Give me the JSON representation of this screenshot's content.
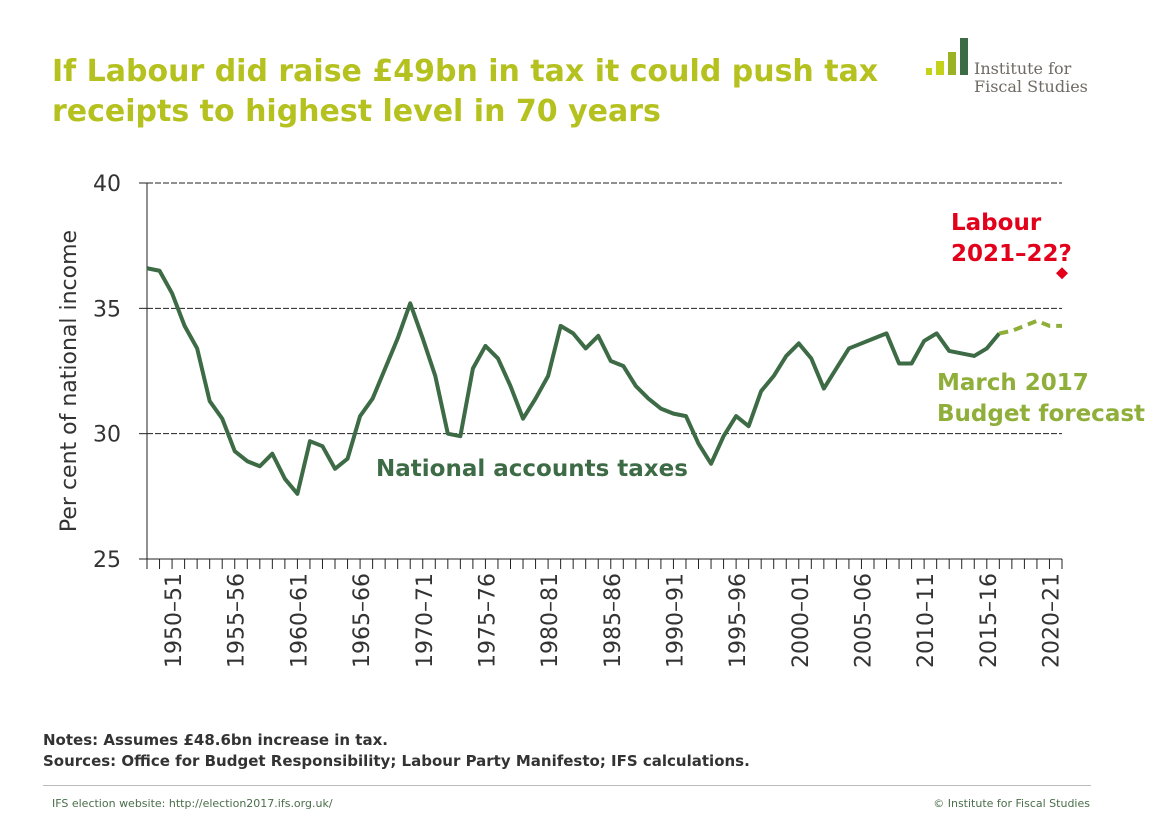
{
  "title": "If Labour did raise £49bn in tax it could push tax receipts to highest level in 70 years",
  "logo": {
    "line1": "Institute for",
    "line2": "Fiscal Studies"
  },
  "notes": {
    "line1": "Notes: Assumes £48.6bn increase in tax.",
    "line2": "Sources: Office for Budget Responsibility; Labour Party Manifesto; IFS calculations."
  },
  "footer": {
    "left": "IFS election website: http://election2017.ifs.org.uk/",
    "right": "© Institute for Fiscal Studies"
  },
  "colors": {
    "title": "#b5c11e",
    "actual": "#3d6b45",
    "forecast": "#8fae3a",
    "labour": "#e2001a"
  },
  "chart_data": {
    "type": "line",
    "ylabel": "Per cent of national income",
    "ylim": [
      25,
      40
    ],
    "yticks": [
      25,
      30,
      35,
      40
    ],
    "grid": "horizontal dashed at 30, 35, 40",
    "x_tick_labels": [
      "1950–51",
      "1955–56",
      "1960–61",
      "1965–66",
      "1970–71",
      "1975–76",
      "1980–81",
      "1985–86",
      "1990–91",
      "1995–96",
      "2000–01",
      "2005–06",
      "2010–11",
      "2015–16",
      "2020–21"
    ],
    "series": [
      {
        "name": "National accounts taxes",
        "style": "solid",
        "x": [
          "1948–49",
          "1949–50",
          "1950–51",
          "1951–52",
          "1952–53",
          "1953–54",
          "1954–55",
          "1955–56",
          "1956–57",
          "1957–58",
          "1958–59",
          "1959–60",
          "1960–61",
          "1961–62",
          "1962–63",
          "1963–64",
          "1964–65",
          "1965–66",
          "1966–67",
          "1967–68",
          "1968–69",
          "1969–70",
          "1970–71",
          "1971–72",
          "1972–73",
          "1973–74",
          "1974–75",
          "1975–76",
          "1976–77",
          "1977–78",
          "1978–79",
          "1979–80",
          "1980–81",
          "1981–82",
          "1982–83",
          "1983–84",
          "1984–85",
          "1985–86",
          "1986–87",
          "1987–88",
          "1988–89",
          "1989–90",
          "1990–91",
          "1991–92",
          "1992–93",
          "1993–94",
          "1994–95",
          "1995–96",
          "1996–97",
          "1997–98",
          "1998–99",
          "1999–00",
          "2000–01",
          "2001–02",
          "2002–03",
          "2003–04",
          "2004–05",
          "2005–06",
          "2006–07",
          "2007–08",
          "2008–09",
          "2009–10",
          "2010–11",
          "2011–12",
          "2012–13",
          "2013–14",
          "2014–15",
          "2015–16",
          "2016–17"
        ],
        "values": [
          36.6,
          36.5,
          35.6,
          34.3,
          33.4,
          31.3,
          30.6,
          29.3,
          28.9,
          28.7,
          29.2,
          28.2,
          27.6,
          29.7,
          29.5,
          28.6,
          29.0,
          30.7,
          31.4,
          32.6,
          33.8,
          35.2,
          33.8,
          32.3,
          30.0,
          29.9,
          32.6,
          33.5,
          33.0,
          31.9,
          30.6,
          31.4,
          32.3,
          34.3,
          34.0,
          33.4,
          33.9,
          32.9,
          32.7,
          31.9,
          31.4,
          31.0,
          30.8,
          30.7,
          29.6,
          28.8,
          29.9,
          30.7,
          30.3,
          31.7,
          32.3,
          33.1,
          33.6,
          33.0,
          31.8,
          32.6,
          33.4,
          33.6,
          33.8,
          34.0,
          32.8,
          32.8,
          33.7,
          34.0,
          33.3,
          33.2,
          33.1,
          33.4,
          34.0
        ]
      },
      {
        "name": "March 2017 Budget forecast",
        "style": "dashed",
        "x": [
          "2016–17",
          "2017–18",
          "2018–19",
          "2019–20",
          "2020–21",
          "2021–22"
        ],
        "values": [
          34.0,
          34.1,
          34.3,
          34.5,
          34.3,
          34.3
        ]
      },
      {
        "name": "Labour 2021–22?",
        "style": "marker",
        "x": [
          "2021–22"
        ],
        "values": [
          36.4
        ]
      }
    ],
    "annotations": [
      {
        "text": "National accounts taxes",
        "color": "actual"
      },
      {
        "text": "March 2017",
        "color": "forecast"
      },
      {
        "text": "Budget forecast",
        "color": "forecast"
      },
      {
        "text": "Labour",
        "color": "labour"
      },
      {
        "text": "2021–22?",
        "color": "labour"
      }
    ]
  }
}
